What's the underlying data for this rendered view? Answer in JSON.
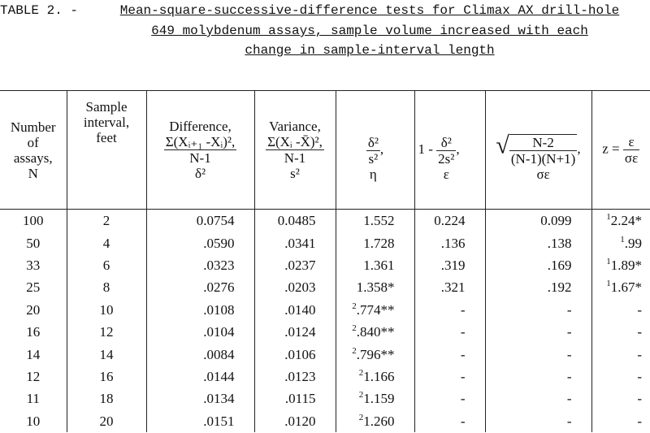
{
  "title": {
    "label": "TABLE 2. -",
    "lines": [
      "Mean-square-successive-difference tests for Climax AX drill-hole",
      "649 molybdenum assays, sample volume increased with each",
      "change in sample-interval length"
    ]
  },
  "table": {
    "headers": [
      {
        "lines": [
          "Number",
          "of",
          "assays,",
          "N"
        ]
      },
      {
        "lines": [
          "Sample",
          "interval,",
          "feet"
        ]
      },
      {
        "label": "Difference,",
        "numerator": "Σ(Xᵢ₊₁ -Xᵢ)²,",
        "denominator": "N-1",
        "symbol": "δ²"
      },
      {
        "label": "Variance,",
        "numerator": "Σ(Xᵢ -X̄)²,",
        "denominator": "N-1",
        "symbol": "s²"
      },
      {
        "numerator": "δ²",
        "denominator": "s²",
        "suffix": ",",
        "symbol": "η"
      },
      {
        "prefix": "1 -",
        "numerator": "δ²",
        "denominator": "2s²",
        "suffix": ",",
        "symbol": "ε"
      },
      {
        "radical": "√",
        "numerator": "N-2",
        "denominator": "(N-1)(N+1)",
        "suffix": ",",
        "symbol": "σε"
      },
      {
        "prefix": "z =",
        "numerator": "ε",
        "denominator": "σε"
      }
    ],
    "rows": [
      [
        "100",
        "2",
        "0.0754",
        "0.0485",
        "1.552",
        "0.224",
        "0.099",
        {
          "sup": "1",
          "text": "2.24*"
        }
      ],
      [
        "50",
        "4",
        ".0590",
        ".0341",
        "1.728",
        ".136",
        ".138",
        {
          "sup": "1",
          "text": ".99"
        }
      ],
      [
        "33",
        "6",
        ".0323",
        ".0237",
        "1.361",
        ".319",
        ".169",
        {
          "sup": "1",
          "text": "1.89*"
        }
      ],
      [
        "25",
        "8",
        ".0276",
        ".0203",
        "1.358*",
        ".321",
        ".192",
        {
          "sup": "1",
          "text": "1.67*"
        }
      ],
      [
        "20",
        "10",
        ".0108",
        ".0140",
        {
          "sup": "2",
          "text": ".774**"
        },
        "-",
        "-",
        "-"
      ],
      [
        "16",
        "12",
        ".0104",
        ".0124",
        {
          "sup": "2",
          "text": ".840**"
        },
        "-",
        "-",
        "-"
      ],
      [
        "14",
        "14",
        ".0084",
        ".0106",
        {
          "sup": "2",
          "text": ".796**"
        },
        "-",
        "-",
        "-"
      ],
      [
        "12",
        "16",
        ".0144",
        ".0123",
        {
          "sup": "2",
          "text": "1.166"
        },
        "-",
        "-",
        "-"
      ],
      [
        "11",
        "18",
        ".0134",
        ".0115",
        {
          "sup": "2",
          "text": "1.159"
        },
        "-",
        "-",
        "-"
      ],
      [
        "10",
        "20",
        ".0151",
        ".0120",
        {
          "sup": "2",
          "text": "1.260"
        },
        "-",
        "-",
        "-"
      ]
    ]
  }
}
